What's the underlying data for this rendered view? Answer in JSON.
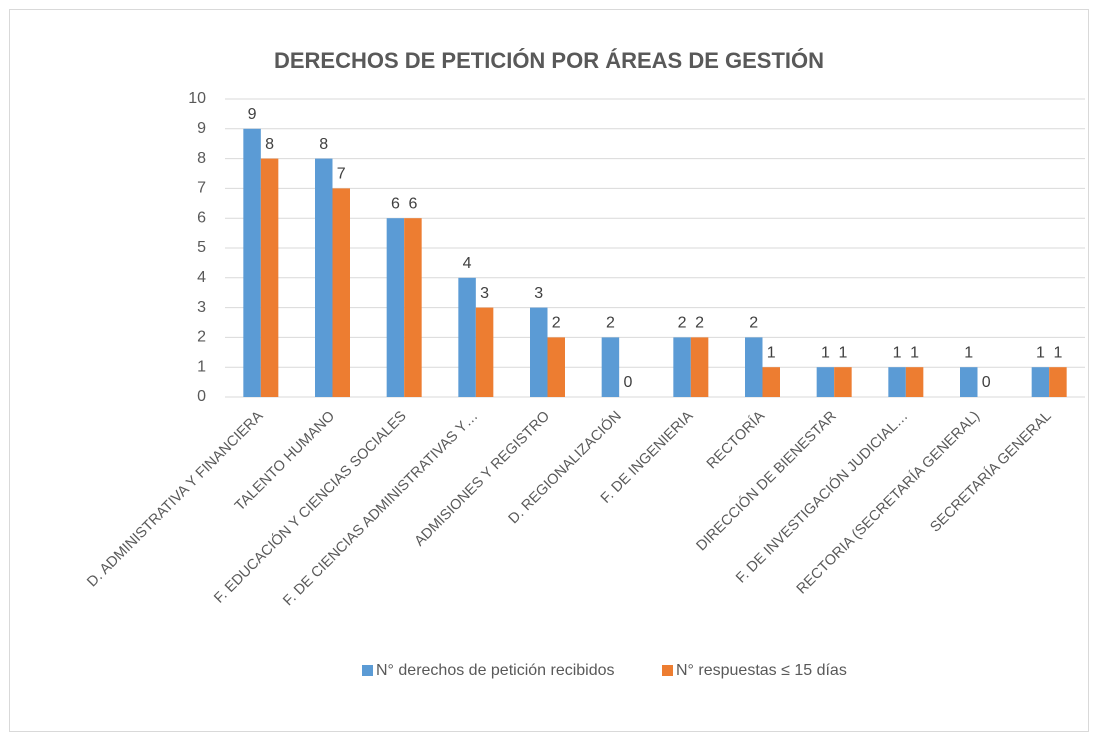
{
  "chart_data": {
    "type": "bar",
    "title": "DERECHOS DE PETICIÓN POR ÁREAS DE GESTIÓN",
    "categories": [
      "D. ADMINISTRATIVA Y FINANCIERA",
      "TALENTO HUMANO",
      "F. EDUCACIÓN Y CIENCIAS SOCIALES",
      "F. DE CIENCIAS ADMINISTRATIVAS Y…",
      "ADMISIONES Y REGISTRO",
      "D. REGIONALIZACIÓN",
      "F. DE INGENIERIA",
      "RECTORÍA",
      "DIRECCIÓN DE BIENESTAR",
      "F. DE INVESTIGACIÓN JUDICIAL…",
      "RECTORIA (SECRETARÍA GENERAL)",
      "SECRETARÍA GENERAL"
    ],
    "series": [
      {
        "name": "N° derechos de petición recibidos",
        "color": "#5b9bd5",
        "values": [
          9,
          8,
          6,
          4,
          3,
          2,
          2,
          2,
          1,
          1,
          1,
          1
        ]
      },
      {
        "name": "N° respuestas ≤ 15 días",
        "color": "#ed7d31",
        "values": [
          8,
          7,
          6,
          3,
          2,
          0,
          2,
          1,
          1,
          1,
          0,
          1
        ]
      }
    ],
    "ylim": [
      0,
      10
    ],
    "yticks": [
      0,
      1,
      2,
      3,
      4,
      5,
      6,
      7,
      8,
      9,
      10
    ],
    "grid": true,
    "legend": "bottom"
  }
}
